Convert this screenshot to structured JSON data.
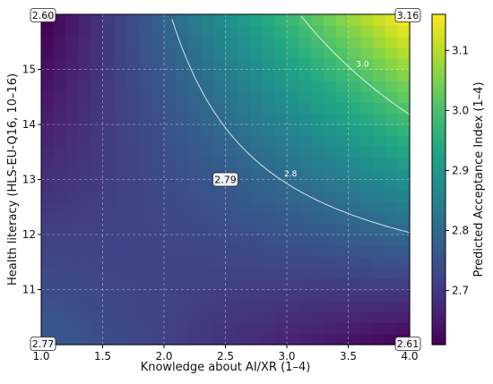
{
  "chart_data": {
    "type": "heatmap",
    "xlabel": "Knowledge about AI/XR (1–4)",
    "ylabel": "Health literacy (HLS-EU-Q16, 10–16)",
    "colorbar_label": "Predicted Acceptance Index (1–4)",
    "xlim": [
      1.0,
      4.0
    ],
    "ylim": [
      10.0,
      16.0
    ],
    "x_ticks": [
      1.0,
      1.5,
      2.0,
      2.5,
      3.0,
      3.5,
      4.0
    ],
    "x_tick_labels": [
      "1.0",
      "1.5",
      "2.0",
      "2.5",
      "3.0",
      "3.5",
      "4.0"
    ],
    "y_ticks": [
      11,
      12,
      13,
      14,
      15
    ],
    "y_tick_labels": [
      "11",
      "12",
      "13",
      "14",
      "15"
    ],
    "colorbar_range": [
      2.61,
      3.16
    ],
    "colorbar_ticks": [
      2.7,
      2.8,
      2.9,
      3.0,
      3.1
    ],
    "colorbar_tick_labels": [
      "2.7",
      "2.8",
      "2.9",
      "3.0",
      "3.1"
    ],
    "grid": true,
    "colormap": "viridis",
    "grid_resolution": 30,
    "model": {
      "note_corner_values": "value = 2.60 at (1,16), 3.16 at (4,16), 2.77 at (1,10), 2.61 at (4,10), 2.79 at (2.5,13)"
    },
    "corner_values": [
      {
        "label": "2.60",
        "x": 1.0,
        "y": 16.0
      },
      {
        "label": "3.16",
        "x": 4.0,
        "y": 16.0
      },
      {
        "label": "2.77",
        "x": 1.0,
        "y": 10.0
      },
      {
        "label": "2.61",
        "x": 4.0,
        "y": 10.0
      }
    ],
    "center_value": {
      "label": "2.79",
      "x": 2.5,
      "y": 13.0
    },
    "contours": [
      {
        "level": 2.8,
        "label": "2.8"
      },
      {
        "level": 3.0,
        "label": "3.0"
      }
    ]
  }
}
